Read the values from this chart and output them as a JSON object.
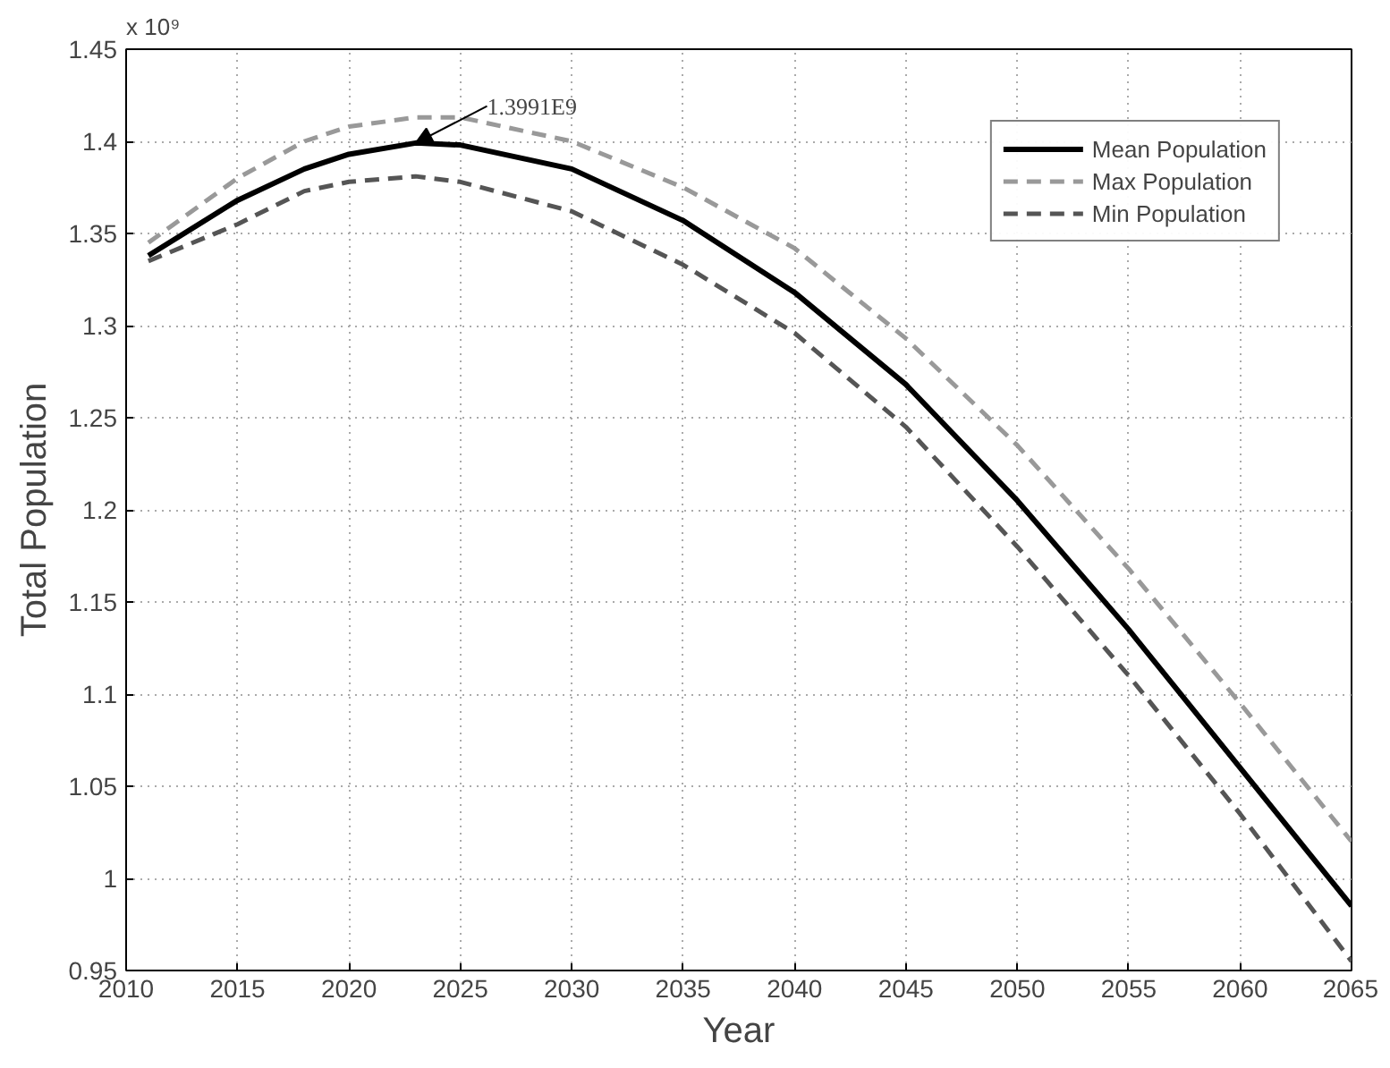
{
  "chart_data": {
    "type": "line",
    "xlabel": "Year",
    "ylabel": "Total Population",
    "x": [
      2011,
      2015,
      2018,
      2020,
      2023,
      2025,
      2030,
      2035,
      2040,
      2045,
      2050,
      2055,
      2060,
      2065
    ],
    "series": [
      {
        "name": "Mean Population",
        "color": "#000000",
        "line_style": "solid",
        "values": [
          1.338,
          1.368,
          1.385,
          1.393,
          1.3991,
          1.398,
          1.385,
          1.357,
          1.318,
          1.268,
          1.205,
          1.135,
          1.06,
          0.985
        ]
      },
      {
        "name": "Max Population",
        "color": "#999999",
        "line_style": "dashed",
        "values": [
          1.345,
          1.38,
          1.4,
          1.408,
          1.413,
          1.413,
          1.4,
          1.375,
          1.342,
          1.293,
          1.235,
          1.168,
          1.095,
          1.02
        ]
      },
      {
        "name": "Min Population",
        "color": "#555555",
        "line_style": "dashed",
        "values": [
          1.335,
          1.355,
          1.373,
          1.378,
          1.381,
          1.378,
          1.362,
          1.333,
          1.296,
          1.245,
          1.18,
          1.11,
          1.035,
          0.955
        ]
      }
    ],
    "xlim": [
      2010,
      2065
    ],
    "xticks": [
      2010,
      2015,
      2020,
      2025,
      2030,
      2035,
      2040,
      2045,
      2050,
      2055,
      2060,
      2065
    ],
    "ylim": [
      0.95,
      1.45
    ],
    "yticks": [
      0.95,
      1,
      1.05,
      1.1,
      1.15,
      1.2,
      1.25,
      1.3,
      1.35,
      1.4,
      1.45
    ],
    "annotations": [
      "x 10⁹",
      {
        "text": "1.3991E9",
        "x": 2023,
        "y": 1.3991
      }
    ],
    "grid": true,
    "legend": "top right",
    "marker": "none"
  }
}
